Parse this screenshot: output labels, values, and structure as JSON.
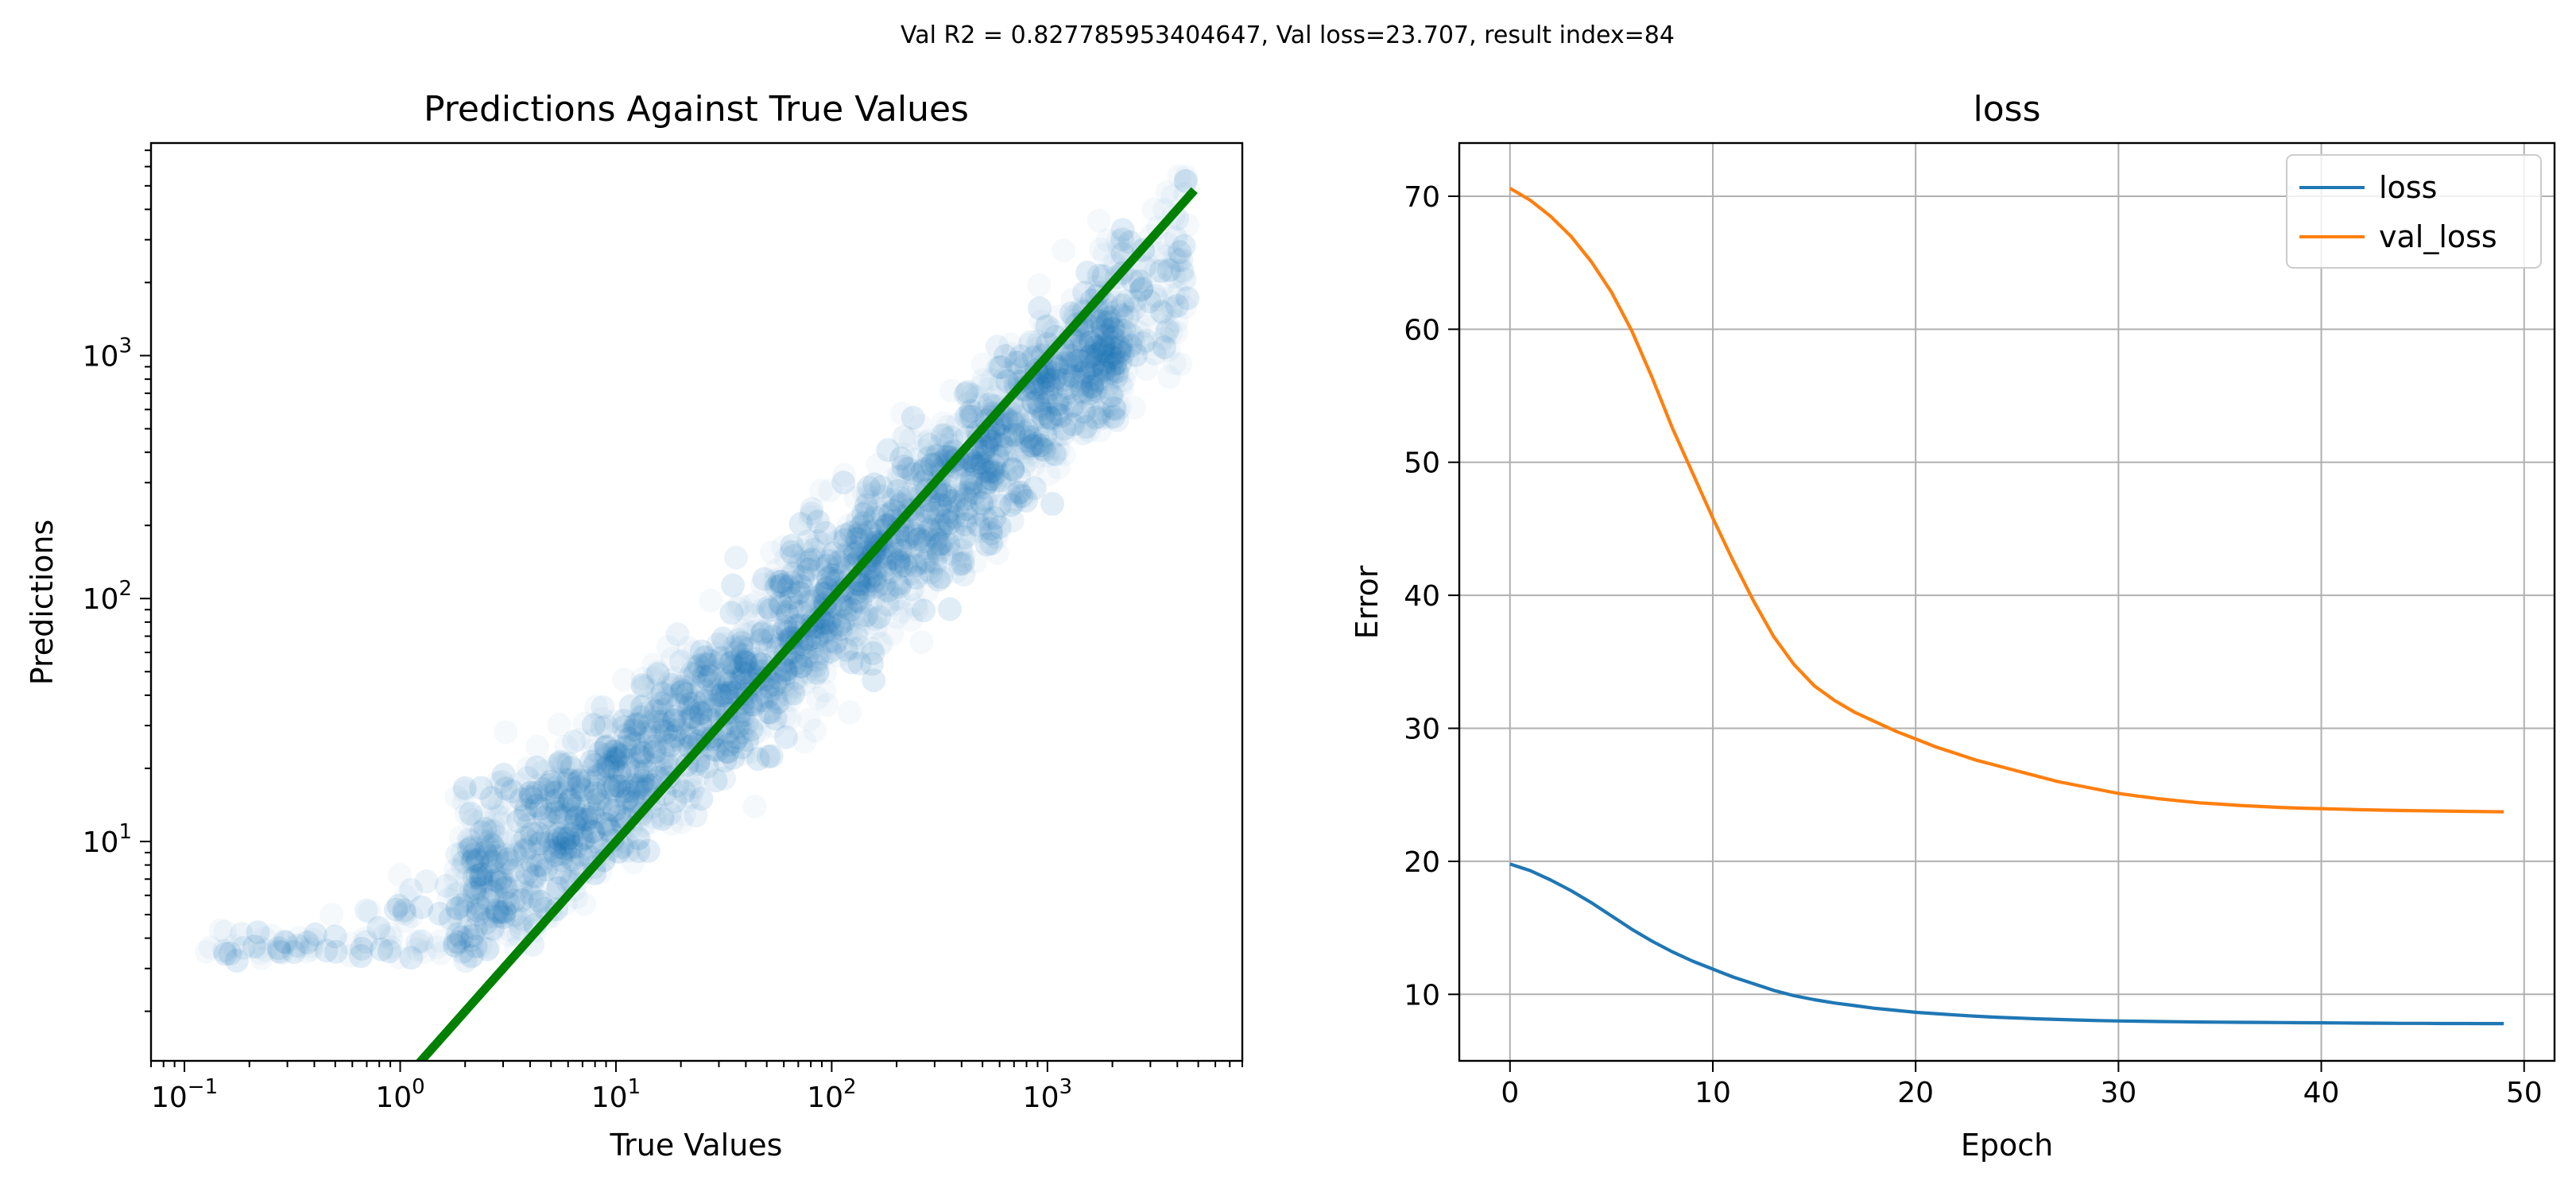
{
  "figure": {
    "suptitle": "Val R2 = 0.827785953404647, Val loss=23.707, result index=84"
  },
  "chart_data": [
    {
      "type": "scatter",
      "title": "Predictions Against True Values",
      "xlabel": "True Values",
      "ylabel": "Predictions",
      "xscale": "log",
      "yscale": "log",
      "xlim": [
        0.07,
        8000
      ],
      "ylim": [
        1.25,
        7500
      ],
      "x_ticks": [
        {
          "value": 0.1,
          "label": "10",
          "exp": "−1"
        },
        {
          "value": 1,
          "label": "10",
          "exp": "0"
        },
        {
          "value": 10,
          "label": "10",
          "exp": "1"
        },
        {
          "value": 100,
          "label": "10",
          "exp": "2"
        },
        {
          "value": 1000,
          "label": "10",
          "exp": "3"
        }
      ],
      "y_ticks": [
        {
          "value": 10,
          "label": "10",
          "exp": "1"
        },
        {
          "value": 100,
          "label": "10",
          "exp": "2"
        },
        {
          "value": 1000,
          "label": "10",
          "exp": "3"
        }
      ],
      "grid": false,
      "point_color": "#1f77b4",
      "reference_line": {
        "color": "#008000",
        "points": [
          [
            1.1,
            1.1
          ],
          [
            4800,
            4800
          ]
        ]
      }
    },
    {
      "type": "line",
      "title": "loss",
      "xlabel": "Epoch",
      "ylabel": "Error",
      "xlim": [
        -2.5,
        51.5
      ],
      "ylim": [
        5,
        74
      ],
      "x_ticks": [
        0,
        10,
        20,
        30,
        40,
        50
      ],
      "y_ticks": [
        10,
        20,
        30,
        40,
        50,
        60,
        70
      ],
      "grid": true,
      "legend_position": "top-right",
      "x": [
        0,
        1,
        2,
        3,
        4,
        5,
        6,
        7,
        8,
        9,
        10,
        11,
        12,
        13,
        14,
        15,
        16,
        17,
        18,
        19,
        20,
        21,
        22,
        23,
        24,
        25,
        26,
        27,
        28,
        29,
        30,
        31,
        32,
        33,
        34,
        35,
        36,
        37,
        38,
        39,
        40,
        41,
        42,
        43,
        44,
        45,
        46,
        47,
        48,
        49
      ],
      "series": [
        {
          "name": "loss",
          "color": "#1f77b4",
          "values": [
            19.8,
            19.3,
            18.6,
            17.8,
            16.9,
            15.9,
            14.9,
            14.0,
            13.2,
            12.5,
            11.9,
            11.3,
            10.8,
            10.3,
            9.9,
            9.6,
            9.35,
            9.15,
            8.95,
            8.8,
            8.65,
            8.55,
            8.45,
            8.35,
            8.28,
            8.22,
            8.16,
            8.11,
            8.07,
            8.03,
            8.0,
            7.98,
            7.96,
            7.94,
            7.92,
            7.91,
            7.9,
            7.89,
            7.88,
            7.87,
            7.86,
            7.85,
            7.84,
            7.83,
            7.82,
            7.82,
            7.81,
            7.81,
            7.8,
            7.8
          ]
        },
        {
          "name": "val_loss",
          "color": "#ff7f0e",
          "values": [
            70.6,
            69.7,
            68.5,
            67.0,
            65.1,
            62.8,
            59.9,
            56.4,
            52.6,
            49.2,
            45.8,
            42.6,
            39.6,
            36.9,
            34.8,
            33.2,
            32.1,
            31.2,
            30.5,
            29.8,
            29.2,
            28.6,
            28.1,
            27.6,
            27.2,
            26.8,
            26.4,
            26.0,
            25.7,
            25.4,
            25.1,
            24.9,
            24.7,
            24.55,
            24.4,
            24.3,
            24.2,
            24.12,
            24.05,
            24.0,
            23.96,
            23.92,
            23.88,
            23.85,
            23.82,
            23.8,
            23.78,
            23.76,
            23.74,
            23.72
          ]
        }
      ]
    }
  ]
}
